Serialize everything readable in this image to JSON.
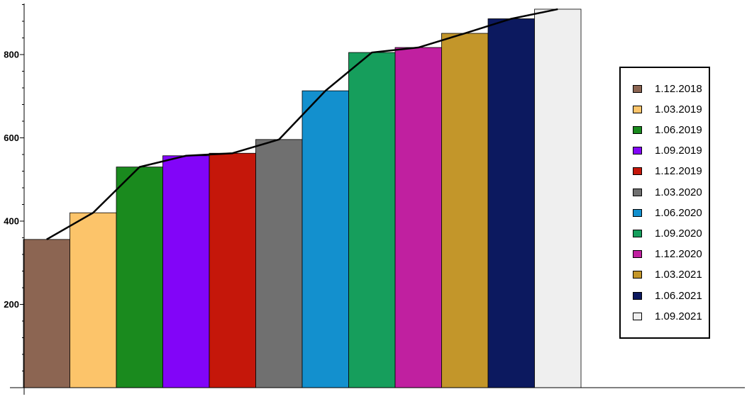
{
  "chart_data": {
    "type": "bar",
    "categories": [
      "1.12.2018",
      "1.03.2019",
      "1.06.2019",
      "1.09.2019",
      "1.12.2019",
      "1.03.2020",
      "1.06.2020",
      "1.09.2020",
      "1.12.2020",
      "1.03.2021",
      "1.06.2021",
      "1.09.2021"
    ],
    "values": [
      356,
      420,
      530,
      557,
      563,
      596,
      713,
      805,
      817,
      851,
      886,
      909
    ],
    "colors": [
      "#8c6552",
      "#fcc46a",
      "#1a8a1e",
      "#8205f8",
      "#c5170a",
      "#707070",
      "#1390ce",
      "#169e5c",
      "#c020a0",
      "#c3962a",
      "#0c195f",
      "#efefef"
    ],
    "line": {
      "color": "#000000",
      "values": [
        356,
        420,
        530,
        557,
        563,
        596,
        713,
        805,
        817,
        851,
        886,
        909
      ]
    },
    "ylim": [
      0,
      920
    ],
    "yticks": [
      200,
      400,
      600,
      800
    ],
    "ytick_labels": [
      "200",
      "400",
      "600",
      "800"
    ],
    "title": "",
    "xlabel": "",
    "ylabel": "",
    "grid": false,
    "legend_position": "right"
  }
}
